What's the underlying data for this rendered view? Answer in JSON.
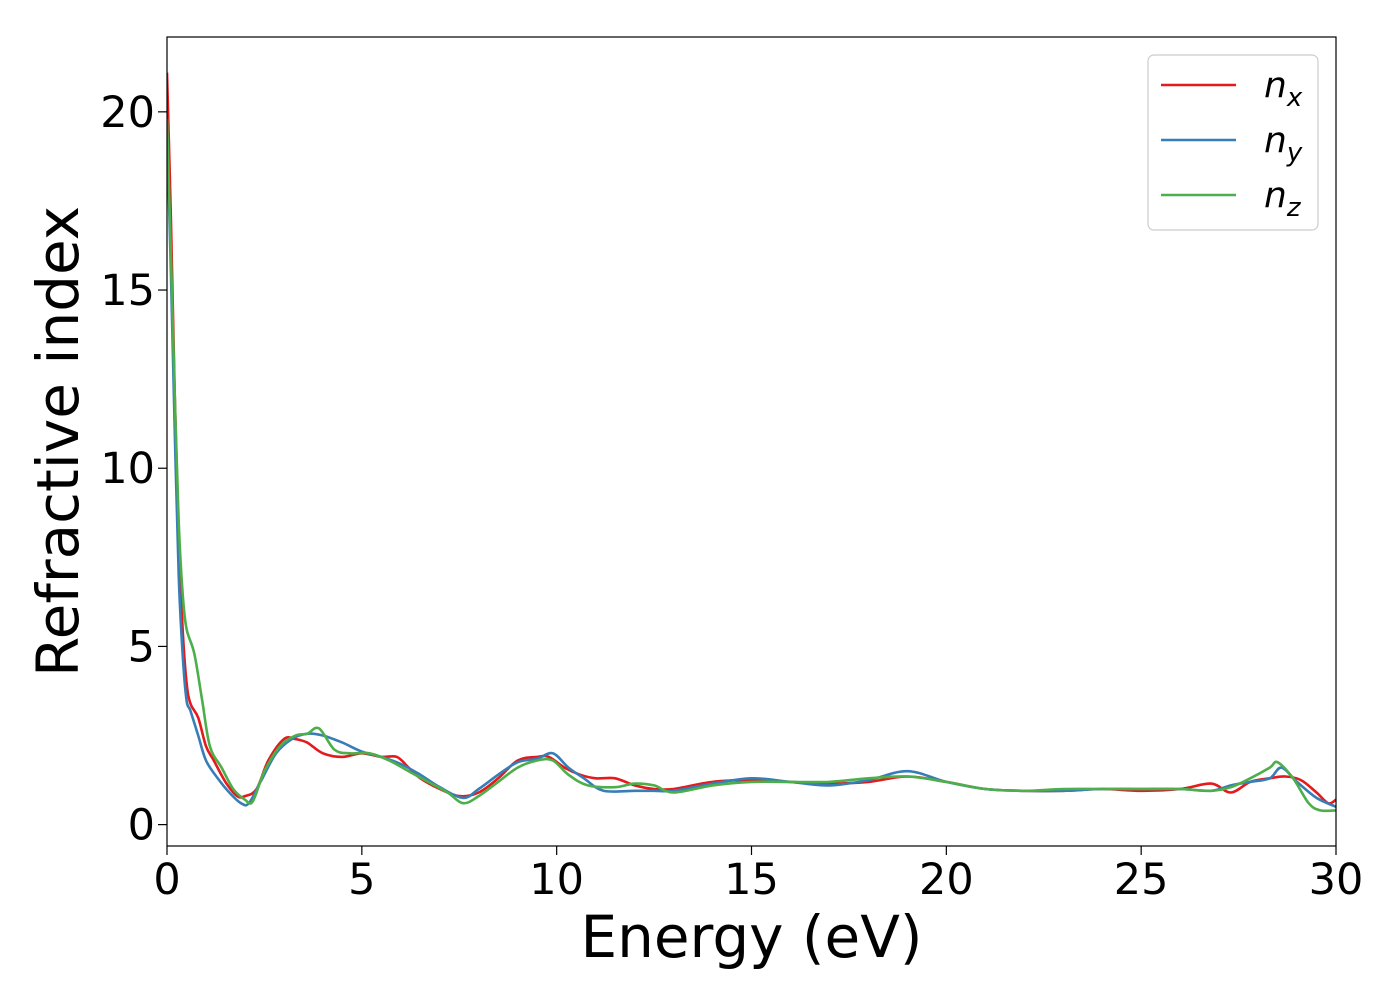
{
  "chart_data": {
    "type": "line",
    "title": "",
    "xlabel": "Energy (eV)",
    "ylabel": "Refractive index",
    "xlim": [
      0,
      30
    ],
    "ylim": [
      -0.6,
      22.1
    ],
    "xticks": [
      0,
      5,
      10,
      15,
      20,
      25,
      30
    ],
    "yticks": [
      0,
      5,
      10,
      15,
      20
    ],
    "grid": false,
    "legend_position": "top-right",
    "series": [
      {
        "name": "n",
        "subscript": "x",
        "color": "#e41a1c",
        "x": [
          0,
          0.1,
          0.2,
          0.3,
          0.4,
          0.5,
          0.6,
          0.8,
          1.0,
          1.2,
          1.5,
          1.8,
          2.0,
          2.3,
          2.6,
          3.0,
          3.3,
          3.6,
          4.0,
          4.5,
          5.0,
          5.5,
          5.9,
          6.2,
          6.5,
          7.0,
          7.5,
          8.0,
          8.5,
          9.0,
          9.5,
          9.8,
          10.2,
          10.6,
          11.0,
          11.5,
          12.0,
          12.5,
          13.0,
          14.0,
          15.0,
          16.0,
          17.0,
          18.0,
          19.0,
          20.0,
          21.0,
          22.0,
          23.0,
          24.0,
          25.0,
          26.0,
          26.8,
          27.3,
          27.8,
          28.3,
          28.7,
          29.1,
          29.5,
          29.8,
          30.0
        ],
        "y": [
          21.1,
          17.0,
          12.0,
          8.0,
          5.5,
          4.0,
          3.4,
          3.0,
          2.2,
          1.8,
          1.2,
          0.8,
          0.8,
          1.0,
          1.8,
          2.4,
          2.4,
          2.3,
          2.0,
          1.9,
          2.0,
          1.9,
          1.9,
          1.6,
          1.3,
          1.0,
          0.8,
          0.9,
          1.3,
          1.8,
          1.9,
          1.9,
          1.6,
          1.4,
          1.3,
          1.3,
          1.1,
          1.0,
          1.0,
          1.2,
          1.25,
          1.2,
          1.15,
          1.2,
          1.35,
          1.2,
          1.0,
          0.95,
          0.95,
          1.0,
          0.95,
          1.0,
          1.15,
          0.9,
          1.2,
          1.3,
          1.35,
          1.25,
          0.9,
          0.6,
          0.7
        ]
      },
      {
        "name": "n",
        "subscript": "y",
        "color": "#377eb8",
        "x": [
          0,
          0.1,
          0.2,
          0.3,
          0.4,
          0.5,
          0.6,
          0.8,
          1.0,
          1.3,
          1.6,
          1.9,
          2.1,
          2.4,
          2.8,
          3.2,
          3.6,
          4.0,
          4.5,
          5.0,
          5.5,
          6.0,
          6.5,
          7.0,
          7.6,
          8.0,
          8.5,
          9.0,
          9.5,
          9.9,
          10.3,
          10.7,
          11.2,
          12.0,
          12.5,
          13.0,
          14.0,
          15.0,
          16.0,
          17.0,
          18.0,
          19.0,
          20.0,
          21.0,
          22.0,
          23.0,
          24.0,
          25.0,
          26.0,
          26.8,
          27.3,
          27.8,
          28.3,
          28.6,
          29.0,
          29.5,
          30.0
        ],
        "y": [
          19.5,
          15.5,
          11.0,
          7.0,
          4.8,
          3.5,
          3.2,
          2.5,
          1.8,
          1.3,
          0.9,
          0.6,
          0.6,
          1.2,
          2.0,
          2.4,
          2.55,
          2.5,
          2.3,
          2.05,
          1.9,
          1.7,
          1.4,
          1.05,
          0.75,
          1.0,
          1.4,
          1.75,
          1.85,
          2.0,
          1.6,
          1.3,
          0.95,
          0.95,
          0.95,
          0.95,
          1.15,
          1.3,
          1.2,
          1.1,
          1.25,
          1.5,
          1.2,
          1.0,
          0.95,
          0.95,
          1.0,
          1.0,
          1.0,
          0.95,
          1.1,
          1.2,
          1.3,
          1.6,
          1.2,
          0.75,
          0.5
        ]
      },
      {
        "name": "n",
        "subscript": "z",
        "color": "#4daf4a",
        "x": [
          0,
          0.1,
          0.2,
          0.3,
          0.4,
          0.5,
          0.7,
          0.9,
          1.1,
          1.4,
          1.7,
          2.0,
          2.2,
          2.5,
          2.9,
          3.3,
          3.6,
          3.9,
          4.3,
          4.7,
          5.2,
          5.7,
          6.2,
          6.7,
          7.2,
          7.6,
          8.0,
          8.5,
          9.0,
          9.5,
          9.9,
          10.3,
          10.8,
          11.5,
          12.0,
          12.5,
          13.0,
          14.0,
          15.0,
          16.0,
          17.0,
          18.0,
          19.0,
          20.0,
          21.0,
          22.0,
          23.0,
          24.0,
          25.0,
          26.0,
          26.8,
          27.3,
          27.8,
          28.3,
          28.5,
          28.9,
          29.3,
          29.6,
          30.0
        ],
        "y": [
          19.8,
          16.0,
          12.0,
          8.5,
          6.5,
          5.5,
          4.8,
          3.5,
          2.2,
          1.6,
          1.0,
          0.7,
          0.65,
          1.5,
          2.2,
          2.5,
          2.55,
          2.7,
          2.1,
          2.0,
          2.0,
          1.8,
          1.5,
          1.2,
          0.9,
          0.6,
          0.8,
          1.2,
          1.6,
          1.8,
          1.8,
          1.4,
          1.1,
          1.05,
          1.15,
          1.1,
          0.9,
          1.1,
          1.2,
          1.2,
          1.2,
          1.3,
          1.35,
          1.2,
          1.0,
          0.95,
          1.0,
          1.0,
          1.0,
          1.0,
          0.95,
          1.05,
          1.3,
          1.6,
          1.75,
          1.3,
          0.6,
          0.4,
          0.4
        ]
      }
    ]
  }
}
